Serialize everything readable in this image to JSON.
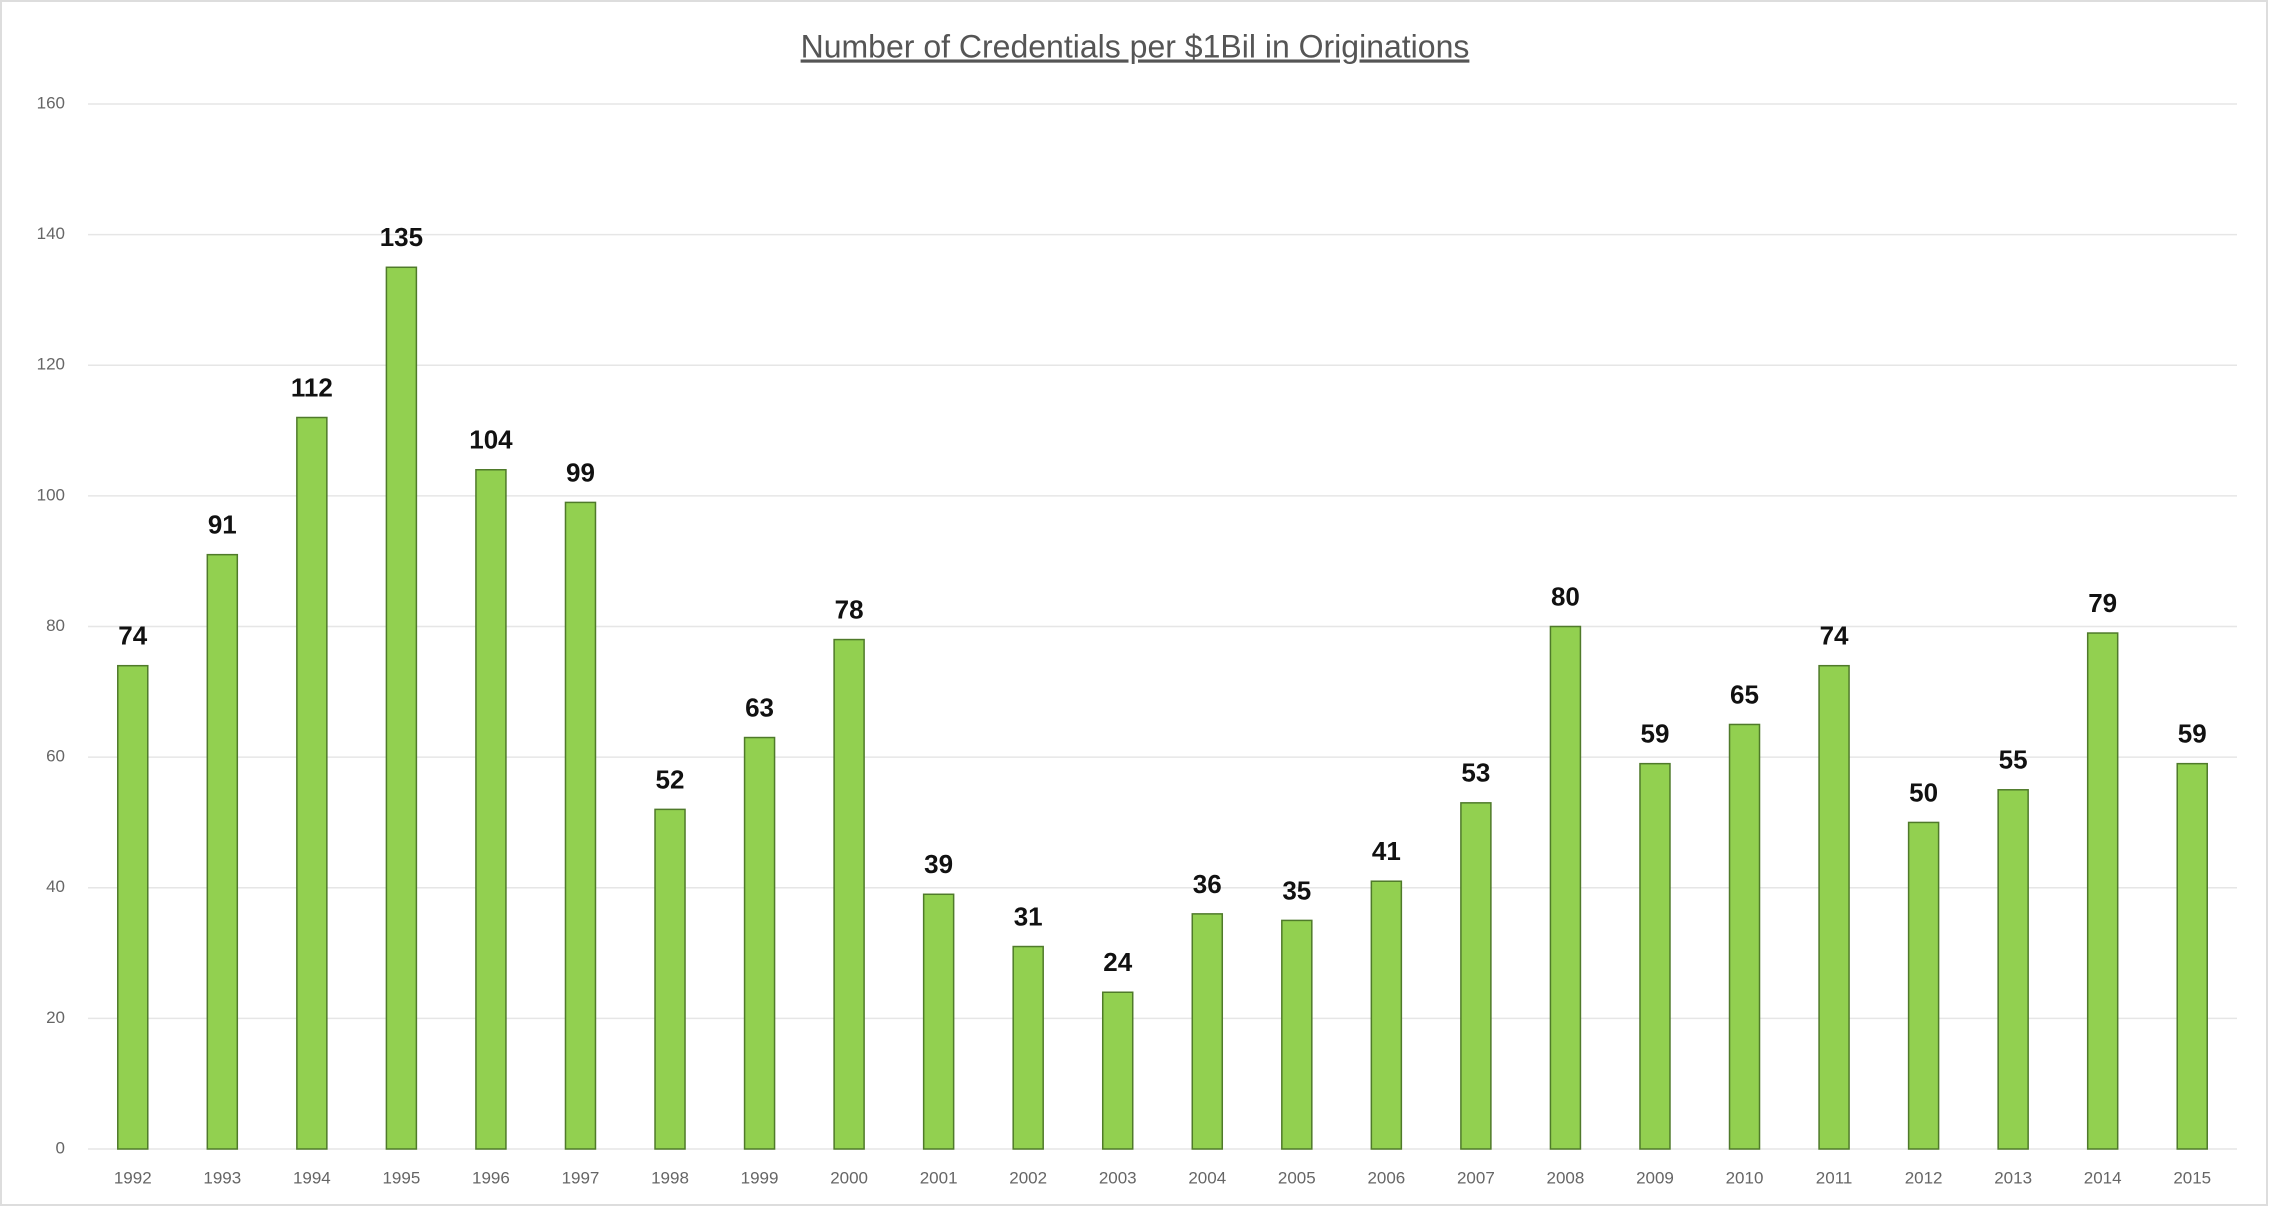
{
  "chart_data": {
    "type": "bar",
    "title": "Number of Credentials per $1Bil in Originations",
    "categories": [
      "1992",
      "1993",
      "1994",
      "1995",
      "1996",
      "1997",
      "1998",
      "1999",
      "2000",
      "2001",
      "2002",
      "2003",
      "2004",
      "2005",
      "2006",
      "2007",
      "2008",
      "2009",
      "2010",
      "2011",
      "2012",
      "2013",
      "2014",
      "2015"
    ],
    "values": [
      74,
      91,
      112,
      135,
      104,
      99,
      52,
      63,
      78,
      39,
      31,
      24,
      36,
      35,
      41,
      53,
      80,
      59,
      65,
      74,
      50,
      55,
      79,
      59
    ],
    "color": "#92d050",
    "ylim": [
      0,
      160
    ],
    "yticks": [
      0,
      20,
      40,
      60,
      80,
      100,
      120,
      140,
      160
    ],
    "grid": true
  }
}
